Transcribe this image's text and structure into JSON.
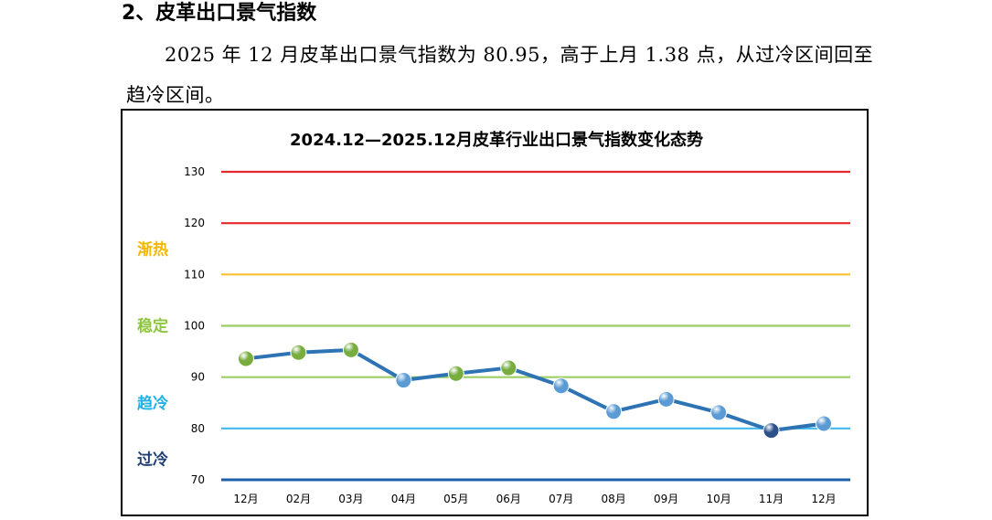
{
  "heading": "2、皮革出口景气指数",
  "paragraph": "2025 年 12 月皮革出口景气指数为 80.95，高于上月 1.38 点，从过冷区间回至趋冷区间。",
  "chart_data": {
    "type": "line",
    "title": "2024.12—2025.12月皮革行业出口景气指数变化态势",
    "categories": [
      "12月",
      "02月",
      "03月",
      "04月",
      "05月",
      "06月",
      "07月",
      "08月",
      "09月",
      "10月",
      "11月",
      "12月"
    ],
    "values": [
      93.6,
      94.8,
      95.3,
      89.4,
      90.7,
      91.8,
      88.3,
      83.3,
      85.7,
      83.1,
      79.6,
      80.95
    ],
    "ylim": [
      70,
      130
    ],
    "yticks": [
      "70",
      "80",
      "90",
      "100",
      "110",
      "120",
      "130"
    ],
    "grid": false,
    "zones": [
      {
        "label": "渐热",
        "value": 115,
        "color": "#f5b800"
      },
      {
        "label": "稳定",
        "value": 100,
        "color": "#8dc63f"
      },
      {
        "label": "趋冷",
        "value": 85,
        "color": "#1fb2e6"
      },
      {
        "label": "过冷",
        "value": 74,
        "color": "#1f3e70"
      }
    ],
    "threshold_lines": [
      {
        "value": 130,
        "color": "#e8262b"
      },
      {
        "value": 120,
        "color": "#e8262b"
      },
      {
        "value": 110,
        "color": "#fbc02d"
      },
      {
        "value": 100,
        "color": "#9bcf65"
      },
      {
        "value": 90,
        "color": "#9bcf65"
      },
      {
        "value": 80,
        "color": "#41b8f0"
      },
      {
        "value": 70,
        "color": "#1f5fa8"
      }
    ],
    "line_color": "#2e74b5",
    "marker_colors": {
      "stable": "#77ad3e",
      "cooling": "#5b9bd5",
      "overcool": "#2c4f8a"
    }
  }
}
